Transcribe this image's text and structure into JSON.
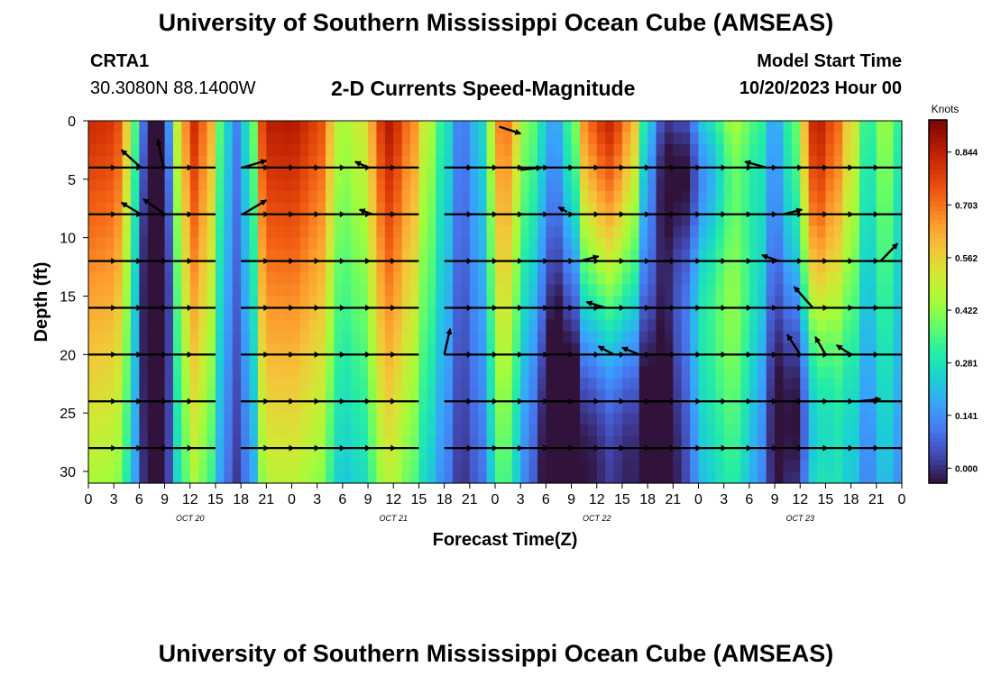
{
  "page": {
    "title": "University of Southern Mississippi Ocean Cube (AMSEAS)",
    "station": "CRTA1",
    "coordinates": "30.3080N  88.1400W",
    "subtitle": "2-D Currents Speed-Magnitude",
    "model_start_label": "Model Start Time",
    "model_start_value": "10/20/2023 Hour 00",
    "footer_title": "University of Southern Mississippi Ocean Cube (AMSEAS)"
  },
  "colors": {
    "colormap": [
      "#30123b",
      "#4145ab",
      "#4675ed",
      "#39a2fc",
      "#1bcfd4",
      "#24eca6",
      "#61fc6c",
      "#a4fc3b",
      "#d1e834",
      "#f3c63a",
      "#fe9b2d",
      "#f36315",
      "#d93806",
      "#b11901",
      "#7a0403"
    ]
  },
  "chart_data": {
    "type": "heatmap",
    "title": "2-D Currents Speed-Magnitude",
    "xlabel": "Forecast Time(Z)",
    "ylabel": "Depth (ft)",
    "xlim": [
      0,
      96
    ],
    "ylim": [
      31,
      0
    ],
    "x_ticks": [
      0,
      3,
      6,
      9,
      12,
      15,
      18,
      21,
      24,
      27,
      30,
      33,
      36,
      39,
      42,
      45,
      48,
      51,
      54,
      57,
      60,
      63,
      66,
      69,
      72,
      75,
      78,
      81,
      84,
      87,
      90,
      93,
      96
    ],
    "x_tick_labels": [
      "0",
      "3",
      "6",
      "9",
      "12",
      "15",
      "18",
      "21",
      "0",
      "3",
      "6",
      "9",
      "12",
      "15",
      "18",
      "21",
      "0",
      "3",
      "6",
      "9",
      "12",
      "15",
      "18",
      "21",
      "0",
      "3",
      "6",
      "9",
      "12",
      "15",
      "18",
      "21",
      "0"
    ],
    "y_ticks": [
      0,
      5,
      10,
      15,
      20,
      25,
      30
    ],
    "y_tick_labels": [
      "0",
      "5",
      "10",
      "15",
      "20",
      "25",
      "30"
    ],
    "day_labels": [
      {
        "x": 12,
        "label": "OCT 20"
      },
      {
        "x": 36,
        "label": "OCT 21"
      },
      {
        "x": 60,
        "label": "OCT 22"
      },
      {
        "x": 84,
        "label": "OCT 23"
      }
    ],
    "colorbar": {
      "title": "Knots",
      "range": [
        -0.04,
        0.93
      ],
      "ticks": [
        0.0,
        0.141,
        0.281,
        0.422,
        0.562,
        0.703,
        0.844
      ],
      "tick_labels": [
        "0.000",
        "0.141",
        "0.281",
        "0.422",
        "0.562",
        "0.703",
        "0.844"
      ]
    },
    "speed_profile": {
      "knots": [
        [
          0,
          0.82
        ],
        [
          3,
          0.8
        ],
        [
          5,
          0.55
        ],
        [
          6,
          0.25
        ],
        [
          7.5,
          0.05
        ],
        [
          9,
          0.15
        ],
        [
          10.5,
          0.55
        ],
        [
          12.5,
          0.82
        ],
        [
          14.5,
          0.62
        ],
        [
          16,
          0.28
        ],
        [
          17.5,
          0.12
        ],
        [
          19,
          0.3
        ],
        [
          21,
          0.85
        ],
        [
          24,
          0.86
        ],
        [
          27,
          0.78
        ],
        [
          30,
          0.45
        ],
        [
          32,
          0.5
        ],
        [
          35.5,
          0.86
        ],
        [
          38,
          0.7
        ],
        [
          40,
          0.48
        ],
        [
          42,
          0.3
        ],
        [
          44,
          0.1
        ],
        [
          46,
          0.22
        ],
        [
          49,
          0.72
        ],
        [
          52,
          0.4
        ],
        [
          55,
          0.18
        ],
        [
          57,
          0.38
        ],
        [
          59,
          0.76
        ],
        [
          61.5,
          0.88
        ],
        [
          64,
          0.72
        ],
        [
          66,
          0.35
        ],
        [
          68,
          0.18
        ],
        [
          70,
          0.26
        ],
        [
          73,
          0.5
        ],
        [
          76,
          0.6
        ],
        [
          79,
          0.4
        ],
        [
          81,
          0.18
        ],
        [
          83,
          0.35
        ],
        [
          86,
          0.86
        ],
        [
          88,
          0.75
        ],
        [
          90,
          0.55
        ],
        [
          92,
          0.3
        ],
        [
          94,
          0.45
        ],
        [
          96,
          0.3
        ]
      ],
      "depth_decay": 0.012,
      "dips": [
        {
          "x": 8,
          "depth": 12,
          "sx": 1.5,
          "sd": 14,
          "amount": 0.25
        },
        {
          "x": 61,
          "depth": 27,
          "sx": 5,
          "sd": 12,
          "amount": 0.5
        },
        {
          "x": 72,
          "depth": 4,
          "sx": 4,
          "sd": 6,
          "amount": 0.3
        },
        {
          "x": 85,
          "depth": 24,
          "sx": 3,
          "sd": 8,
          "amount": 0.3
        }
      ]
    },
    "vector_depths": [
      4,
      8,
      12,
      16,
      20,
      24,
      28
    ],
    "vector_segments": [
      [
        0,
        15
      ],
      [
        18,
        39
      ],
      [
        42,
        69
      ],
      [
        66,
        96
      ]
    ],
    "arrows": [
      {
        "x": 6.2,
        "depth": 4,
        "dx": -2.3,
        "dd": -1.5
      },
      {
        "x": 6.2,
        "depth": 8,
        "dx": -2.3,
        "dd": -1.0
      },
      {
        "x": 8.8,
        "depth": 3.8,
        "dx": -0.6,
        "dd": -2.2
      },
      {
        "x": 9.0,
        "depth": 8,
        "dx": -2.5,
        "dd": -1.3
      },
      {
        "x": 18.2,
        "depth": 4,
        "dx": 2.8,
        "dd": -0.6
      },
      {
        "x": 18.2,
        "depth": 8,
        "dx": 2.8,
        "dd": -1.2
      },
      {
        "x": 33.0,
        "depth": 4,
        "dx": -1.5,
        "dd": -0.5
      },
      {
        "x": 33.5,
        "depth": 8,
        "dx": -1.5,
        "dd": -0.4
      },
      {
        "x": 42.0,
        "depth": 20,
        "dx": 0.7,
        "dd": -2.2
      },
      {
        "x": 48.5,
        "depth": 0.5,
        "dx": 2.5,
        "dd": 0.6
      },
      {
        "x": 51.0,
        "depth": 4.2,
        "dx": 2.5,
        "dd": -0.2
      },
      {
        "x": 56.5,
        "depth": 7.8,
        "dx": -1.0,
        "dd": -0.4
      },
      {
        "x": 58.0,
        "depth": 12,
        "dx": 2.2,
        "dd": -0.4
      },
      {
        "x": 62.0,
        "depth": 20,
        "dx": -1.8,
        "dd": -0.7
      },
      {
        "x": 65.0,
        "depth": 20,
        "dx": -2.0,
        "dd": -0.6
      },
      {
        "x": 61.0,
        "depth": 16,
        "dx": -2.2,
        "dd": -0.5
      },
      {
        "x": 80.0,
        "depth": 4,
        "dx": -2.5,
        "dd": -0.5
      },
      {
        "x": 82.0,
        "depth": 8,
        "dx": 2.2,
        "dd": -0.4
      },
      {
        "x": 81.5,
        "depth": 12,
        "dx": -2.0,
        "dd": -0.5
      },
      {
        "x": 85.5,
        "depth": 16,
        "dx": -2.2,
        "dd": -1.8
      },
      {
        "x": 84.0,
        "depth": 20,
        "dx": -1.5,
        "dd": -1.7
      },
      {
        "x": 87.0,
        "depth": 20,
        "dx": -1.2,
        "dd": -1.5
      },
      {
        "x": 90.0,
        "depth": 20,
        "dx": -1.7,
        "dd": -0.8
      },
      {
        "x": 93.5,
        "depth": 12,
        "dx": 2.0,
        "dd": -1.5
      },
      {
        "x": 91.0,
        "depth": 24,
        "dx": 2.5,
        "dd": -0.2
      }
    ]
  }
}
